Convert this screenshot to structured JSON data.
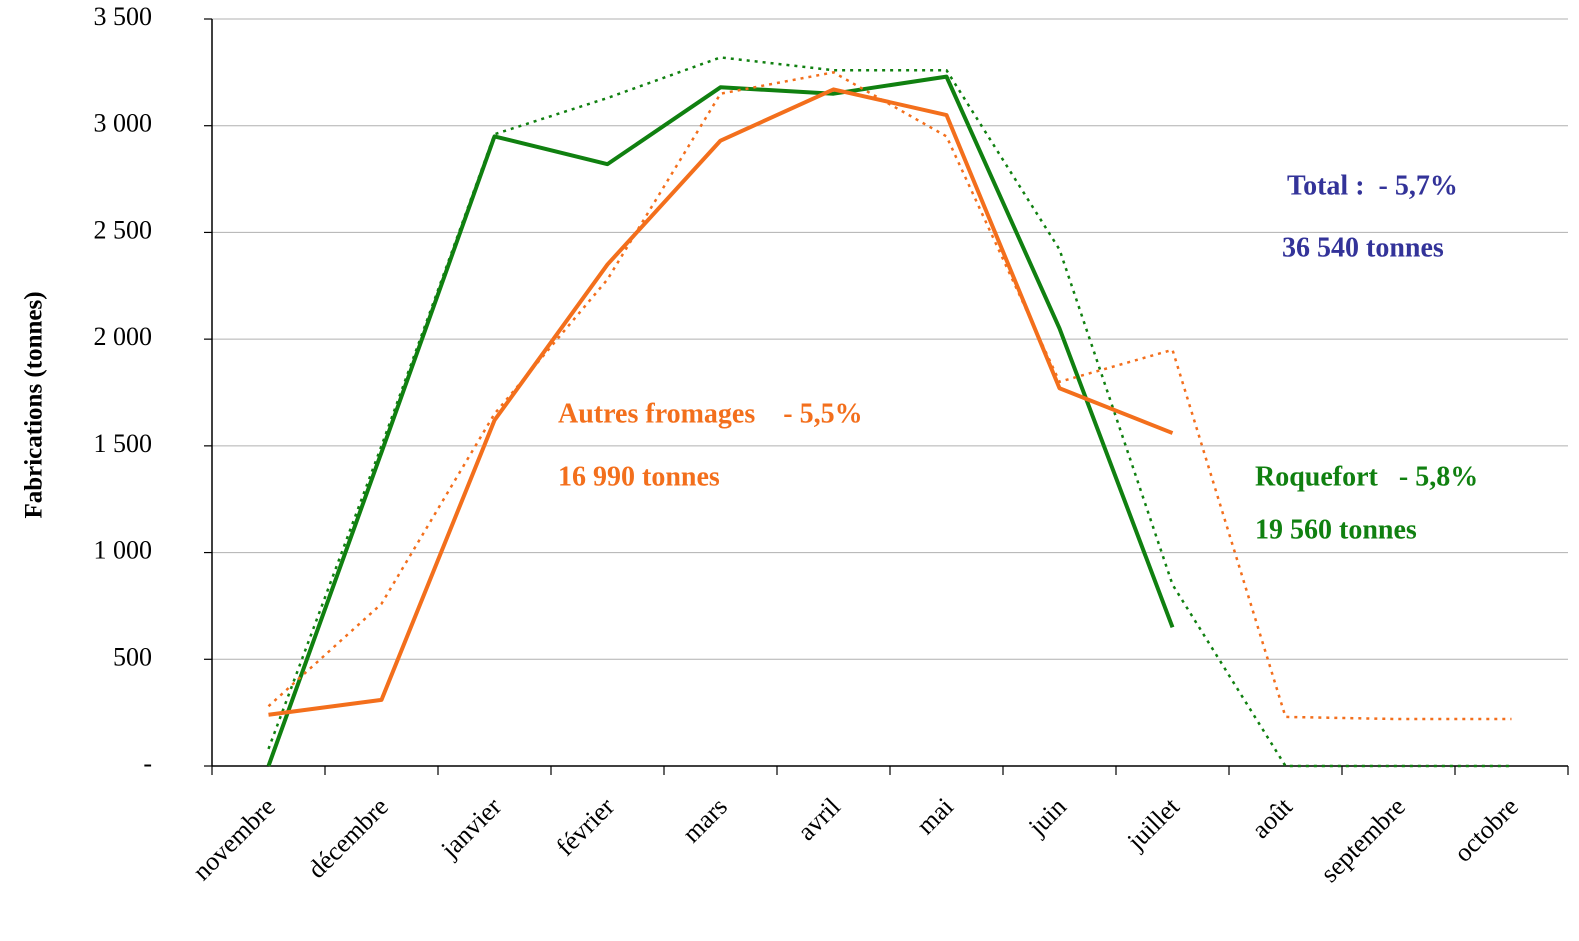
{
  "chart_data": {
    "type": "line",
    "y_label": "Fabrications (tonnes)",
    "categories": [
      "novembre",
      "décembre",
      "janvier",
      "février",
      "mars",
      "avril",
      "mai",
      "juin",
      "juillet",
      "août",
      "septembre",
      "octobre"
    ],
    "series": [
      {
        "color": "#108010",
        "style": "solid",
        "values": [
          0,
          1470,
          2950,
          2820,
          3180,
          3150,
          3230,
          2050,
          650,
          null,
          null,
          null
        ]
      },
      {
        "color": "#108010",
        "style": "dotted",
        "values": [
          80,
          1500,
          2960,
          3130,
          3320,
          3260,
          3260,
          2420,
          850,
          0,
          0,
          0
        ]
      },
      {
        "color": "#f36f1c",
        "style": "solid",
        "values": [
          240,
          310,
          1620,
          2350,
          2930,
          3170,
          3050,
          1770,
          1560,
          null,
          null,
          null
        ]
      },
      {
        "color": "#f36f1c",
        "style": "dotted",
        "values": [
          280,
          760,
          1650,
          2280,
          3150,
          3250,
          2950,
          1800,
          1950,
          230,
          220,
          220
        ]
      }
    ],
    "annotations": [
      {
        "text": "Total :  - 5,7%",
        "color": "#333399"
      },
      {
        "text": "36 540 tonnes",
        "color": "#333399"
      },
      {
        "text": "Autres fromages    - 5,5%",
        "color": "#f36f1c"
      },
      {
        "text": "16 990 tonnes",
        "color": "#f36f1c"
      },
      {
        "text": "Roquefort   - 5,8%",
        "color": "#108010"
      },
      {
        "text": "19 560 tonnes",
        "color": "#108010"
      }
    ],
    "ylim": [
      0,
      3500
    ],
    "yticks": [
      {
        "value": 0,
        "label": "-"
      },
      500,
      {
        "value": 1000,
        "label": "1 000"
      },
      {
        "value": 1500,
        "label": "1 500"
      },
      {
        "value": 2000,
        "label": "2 000"
      },
      {
        "value": 2500,
        "label": "2 500"
      },
      {
        "value": 3000,
        "label": "3 000"
      },
      {
        "value": 3500,
        "label": "3 500"
      }
    ],
    "grid": true
  }
}
